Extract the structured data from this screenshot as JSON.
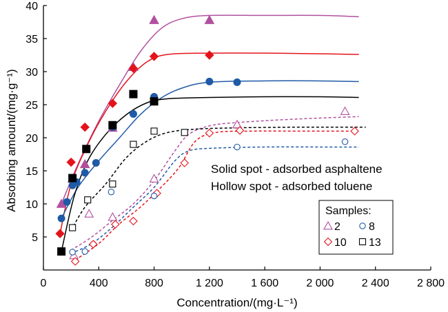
{
  "chart_data": {
    "type": "scatter",
    "xlabel": "Concentration/(mg·L⁻¹)",
    "ylabel": "Absorbing amount/(mg·g⁻¹)",
    "xlim": [
      0,
      2800
    ],
    "ylim": [
      0,
      40
    ],
    "x_ticks": [
      0,
      400,
      800,
      1200,
      1600,
      2000,
      2400,
      2800
    ],
    "x_tick_labels": [
      "0",
      "400",
      "800",
      "1 200",
      "1 600",
      "2 000",
      "2 400",
      "2 800"
    ],
    "y_ticks": [
      5,
      10,
      15,
      20,
      25,
      30,
      35,
      40
    ],
    "y_tick_labels": [
      "5",
      "10",
      "15",
      "20",
      "25",
      "30",
      "35",
      "40"
    ],
    "annotations": [
      "Solid spot - adsorbed asphaltene",
      "Hollow spot - adsorbed toluene"
    ],
    "legend": {
      "title": "Samples:",
      "position": "lower-right",
      "entries": [
        {
          "label": "2",
          "marker": "triangle",
          "color": "#b0509e"
        },
        {
          "label": "8",
          "marker": "circle",
          "color": "#1f5aa6"
        },
        {
          "label": "10",
          "marker": "diamond",
          "color": "#e4131b"
        },
        {
          "label": "13",
          "marker": "square",
          "color": "#000000"
        }
      ]
    },
    "series": [
      {
        "name": "2",
        "kind": "asphaltene",
        "marker": "triangle",
        "filled": true,
        "color": "#b0509e",
        "line_style": "solid",
        "points": [
          [
            130,
            10
          ],
          [
            210,
            13.8
          ],
          [
            300,
            16
          ],
          [
            500,
            21.5
          ],
          [
            650,
            30.7
          ],
          [
            800,
            37.8
          ],
          [
            1200,
            37.8
          ]
        ],
        "curve": [
          [
            130,
            10
          ],
          [
            250,
            16
          ],
          [
            400,
            22.5
          ],
          [
            550,
            28
          ],
          [
            700,
            33
          ],
          [
            850,
            36.5
          ],
          [
            1000,
            38
          ],
          [
            1200,
            38.5
          ],
          [
            1600,
            38.5
          ],
          [
            2000,
            38.5
          ],
          [
            2280,
            38.3
          ]
        ]
      },
      {
        "name": "10",
        "kind": "asphaltene",
        "marker": "diamond",
        "filled": true,
        "color": "#e4131b",
        "line_style": "solid",
        "points": [
          [
            120,
            5.5
          ],
          [
            200,
            16.3
          ],
          [
            300,
            21.6
          ],
          [
            500,
            25.2
          ],
          [
            650,
            30.5
          ],
          [
            800,
            32.3
          ],
          [
            1200,
            32.5
          ]
        ],
        "curve": [
          [
            120,
            5.5
          ],
          [
            200,
            13
          ],
          [
            320,
            19
          ],
          [
            450,
            24
          ],
          [
            600,
            28.5
          ],
          [
            750,
            31.5
          ],
          [
            900,
            32.6
          ],
          [
            1200,
            32.8
          ],
          [
            1600,
            32.8
          ],
          [
            2000,
            32.7
          ],
          [
            2280,
            32.6
          ]
        ]
      },
      {
        "name": "8",
        "kind": "asphaltene",
        "marker": "circle",
        "filled": true,
        "color": "#1f5aa6",
        "line_style": "solid",
        "points": [
          [
            130,
            7.8
          ],
          [
            170,
            10.3
          ],
          [
            210,
            12.8
          ],
          [
            240,
            13.3
          ],
          [
            300,
            14.7
          ],
          [
            380,
            16.2
          ],
          [
            500,
            21.6
          ],
          [
            650,
            23.6
          ],
          [
            800,
            26.2
          ],
          [
            1200,
            28.5
          ],
          [
            1400,
            28.4
          ]
        ],
        "curve": [
          [
            130,
            7.8
          ],
          [
            250,
            12.5
          ],
          [
            400,
            16.5
          ],
          [
            550,
            20
          ],
          [
            700,
            23.5
          ],
          [
            850,
            26
          ],
          [
            1000,
            27.5
          ],
          [
            1200,
            28.4
          ],
          [
            1600,
            28.6
          ],
          [
            2000,
            28.6
          ],
          [
            2280,
            28.5
          ]
        ]
      },
      {
        "name": "13",
        "kind": "asphaltene",
        "marker": "square",
        "filled": true,
        "color": "#000000",
        "line_style": "solid",
        "points": [
          [
            130,
            2.8
          ],
          [
            210,
            13.9
          ],
          [
            310,
            18.3
          ],
          [
            500,
            21.9
          ],
          [
            650,
            26.6
          ],
          [
            800,
            25.5
          ]
        ],
        "curve": [
          [
            130,
            2.8
          ],
          [
            220,
            11
          ],
          [
            320,
            16.5
          ],
          [
            450,
            20.5
          ],
          [
            600,
            23.5
          ],
          [
            750,
            25.3
          ],
          [
            900,
            25.9
          ],
          [
            1200,
            26.1
          ],
          [
            1600,
            26.2
          ],
          [
            2000,
            26.2
          ],
          [
            2280,
            26.1
          ]
        ]
      },
      {
        "name": "2",
        "kind": "toluene",
        "marker": "triangle",
        "filled": false,
        "color": "#b0509e",
        "line_style": "dashed",
        "points": [
          [
            220,
            2.2
          ],
          [
            330,
            8.5
          ],
          [
            500,
            8
          ],
          [
            800,
            13.8
          ],
          [
            1400,
            22
          ],
          [
            2180,
            24
          ]
        ],
        "curve": [
          [
            200,
            3
          ],
          [
            350,
            5
          ],
          [
            500,
            7.5
          ],
          [
            650,
            10
          ],
          [
            800,
            13.5
          ],
          [
            950,
            18
          ],
          [
            1050,
            20.5
          ],
          [
            1200,
            21.8
          ],
          [
            1400,
            22.3
          ],
          [
            1800,
            22.8
          ],
          [
            2280,
            23.2
          ]
        ]
      },
      {
        "name": "10",
        "kind": "toluene",
        "marker": "diamond",
        "filled": false,
        "color": "#e4131b",
        "line_style": "dashed",
        "points": [
          [
            230,
            1.3
          ],
          [
            360,
            3.9
          ],
          [
            520,
            6.9
          ],
          [
            650,
            7.4
          ],
          [
            820,
            11.6
          ],
          [
            1020,
            16.2
          ],
          [
            1200,
            20.7
          ],
          [
            1420,
            21.1
          ],
          [
            2250,
            21
          ]
        ],
        "curve": [
          [
            230,
            1.5
          ],
          [
            400,
            4
          ],
          [
            550,
            7
          ],
          [
            700,
            9.5
          ],
          [
            850,
            12.5
          ],
          [
            980,
            15.5
          ],
          [
            1100,
            19.5
          ],
          [
            1250,
            20.8
          ],
          [
            1500,
            21
          ],
          [
            1900,
            21
          ],
          [
            2280,
            21
          ]
        ]
      },
      {
        "name": "8",
        "kind": "toluene",
        "marker": "circle",
        "filled": false,
        "color": "#1f5aa6",
        "line_style": "dashed",
        "points": [
          [
            210,
            2.7
          ],
          [
            300,
            2.8
          ],
          [
            490,
            11.8
          ],
          [
            800,
            11.2
          ],
          [
            1400,
            18.6
          ],
          [
            2180,
            19.4
          ]
        ],
        "curve": [
          [
            200,
            2.5
          ],
          [
            350,
            4
          ],
          [
            500,
            6.5
          ],
          [
            650,
            9.5
          ],
          [
            800,
            12.5
          ],
          [
            950,
            16.5
          ],
          [
            1050,
            18
          ],
          [
            1200,
            18.4
          ],
          [
            1600,
            18.6
          ],
          [
            2000,
            18.6
          ],
          [
            2280,
            18.6
          ]
        ]
      },
      {
        "name": "13",
        "kind": "toluene",
        "marker": "square",
        "filled": false,
        "color": "#000000",
        "line_style": "dashed",
        "points": [
          [
            210,
            6.4
          ],
          [
            320,
            10.6
          ],
          [
            500,
            13
          ],
          [
            650,
            19
          ],
          [
            800,
            21
          ],
          [
            1020,
            20.8
          ]
        ],
        "curve": [
          [
            200,
            6
          ],
          [
            300,
            9.5
          ],
          [
            450,
            13
          ],
          [
            600,
            17
          ],
          [
            750,
            19.5
          ],
          [
            900,
            20.8
          ],
          [
            1100,
            21.3
          ],
          [
            1400,
            21.5
          ],
          [
            1800,
            21.6
          ],
          [
            2100,
            21.6
          ],
          [
            2330,
            21.6
          ]
        ]
      }
    ]
  }
}
